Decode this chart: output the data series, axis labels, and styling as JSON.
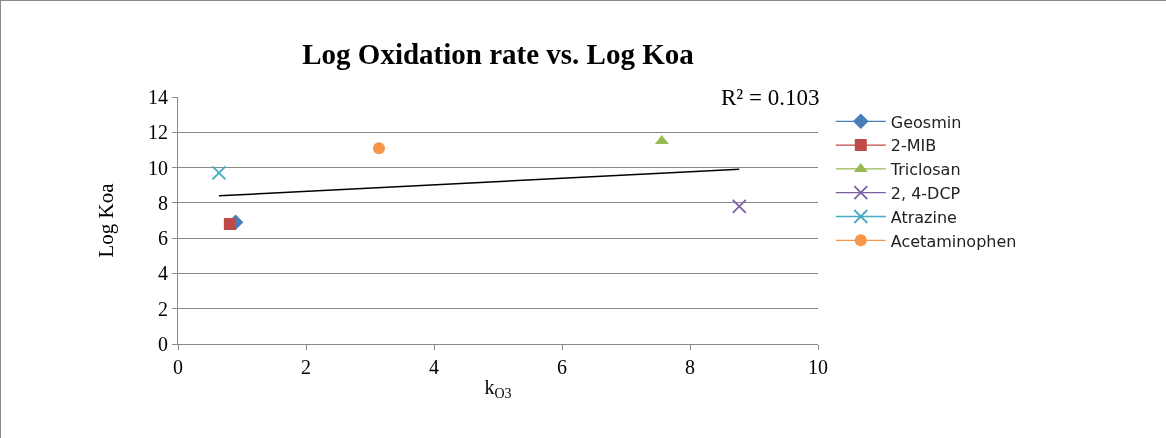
{
  "chart_data": {
    "type": "scatter",
    "title": "Log Oxidation rate vs. Log Koa",
    "xlabel": "k$_{O3}$",
    "ylabel": "Log Koa",
    "xlim": [
      0,
      10
    ],
    "xticks": [
      0,
      2,
      4,
      6,
      8,
      10
    ],
    "ylim": [
      0,
      14
    ],
    "yticks": [
      0,
      2,
      4,
      6,
      8,
      10,
      12,
      14
    ],
    "grid": "y",
    "legend": "right",
    "annotations": [
      "R² = 0.103"
    ],
    "series": [
      {
        "name": "Geosmin",
        "color": "#4a7ebb",
        "marker": "diamond",
        "x": [
          0.9
        ],
        "values": [
          6.9
        ]
      },
      {
        "name": "2-MIB",
        "color": "#be4b48",
        "marker": "square",
        "x": [
          0.81
        ],
        "values": [
          6.8
        ]
      },
      {
        "name": "Triclosan",
        "color": "#98b954",
        "marker": "triangle",
        "x": [
          7.56
        ],
        "values": [
          11.5
        ]
      },
      {
        "name": "2, 4-DCP",
        "color": "#7d60a0",
        "marker": "cross",
        "x": [
          8.77
        ],
        "values": [
          7.8
        ]
      },
      {
        "name": "Atrazine",
        "color": "#46aac5",
        "marker": "cross",
        "x": [
          0.64
        ],
        "values": [
          9.7
        ]
      },
      {
        "name": "Acetaminophen",
        "color": "#f79646",
        "marker": "circle",
        "x": [
          3.14
        ],
        "values": [
          11.1
        ]
      },
      {
        "type": "line",
        "color": "#000000",
        "marker": "none",
        "x": [
          0.64,
          8.77
        ],
        "values": [
          8.4,
          9.9
        ]
      }
    ]
  }
}
